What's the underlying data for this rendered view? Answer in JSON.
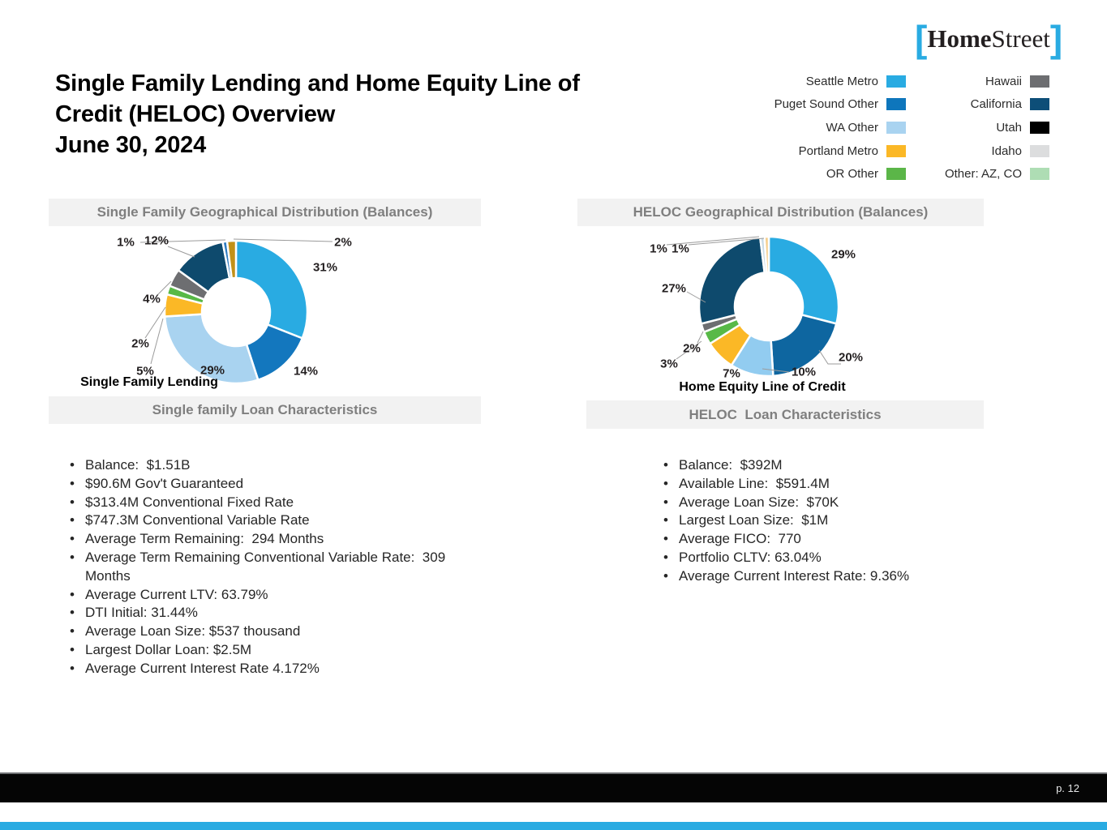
{
  "slide": {
    "title_lines": [
      "Single Family Lending and Home Equity Line of",
      "Credit (HELOC) Overview",
      "June 30, 2024"
    ]
  },
  "logo": {
    "bracket_left": "[",
    "text_bold": "Home",
    "text_regular": "Street",
    "bracket_right": "]",
    "accent_color": "#29ABE2"
  },
  "legend": {
    "columns": [
      [
        {
          "label": "Seattle Metro",
          "color": "#29ABE2"
        },
        {
          "label": "Puget Sound Other",
          "color": "#0E76BC"
        },
        {
          "label": "WA Other",
          "color": "#A9D3F0"
        },
        {
          "label": "Portland Metro",
          "color": "#FBB826"
        },
        {
          "label": "OR Other",
          "color": "#5BB648"
        }
      ],
      [
        {
          "label": "Hawaii",
          "color": "#6D6E71"
        },
        {
          "label": "California",
          "color": "#0D4E78"
        },
        {
          "label": "Utah",
          "color": "#000000"
        },
        {
          "label": "Idaho",
          "color": "#DCDDDE"
        },
        {
          "label": "Other: AZ, CO",
          "color": "#AEDDB4"
        }
      ]
    ]
  },
  "chart_data": [
    {
      "type": "pie",
      "subtype": "donut",
      "title": "Single Family Geographical Distribution (Balances)",
      "caption": "Single Family Lending",
      "legend_position": "top-right shared",
      "categories": [
        "Seattle Metro",
        "Puget Sound Other",
        "WA Other",
        "Portland Metro",
        "OR Other",
        "Hawaii",
        "California",
        "Utah",
        "Other: AZ, CO"
      ],
      "values": [
        31,
        14,
        29,
        5,
        2,
        4,
        12,
        1,
        2
      ],
      "colors": [
        "#29ABE2",
        "#1377BE",
        "#A9D3F0",
        "#FBB826",
        "#58B947",
        "#6D6E71",
        "#0E4A6D",
        "#2F7CC0",
        "#C29118"
      ]
    },
    {
      "type": "pie",
      "subtype": "donut",
      "title": "HELOC Geographical Distribution (Balances)",
      "caption": "Home Equity Line of Credit",
      "legend_position": "top-right shared",
      "categories": [
        "Seattle Metro",
        "Puget Sound Other",
        "WA Other",
        "Portland Metro",
        "OR Other",
        "Hawaii",
        "California",
        "Idaho",
        "Other: AZ, CO"
      ],
      "values": [
        29,
        20,
        10,
        7,
        3,
        2,
        27,
        1,
        1
      ],
      "colors": [
        "#29ABE2",
        "#0E66A0",
        "#92CCF0",
        "#FBB826",
        "#58B947",
        "#6D6E71",
        "#0E4A6D",
        "#C9DBE6",
        "#F5CE8C"
      ]
    }
  ],
  "loan_sections": [
    {
      "title": "Single family Loan Characteristics",
      "bullets": [
        "Balance:  $1.51B",
        "$90.6M Gov't Guaranteed",
        "$313.4M Conventional Fixed Rate",
        "$747.3M Conventional Variable Rate",
        "Average Term Remaining:  294 Months",
        "Average Term Remaining Conventional Variable Rate:  309 Months",
        "Average Current LTV: 63.79%",
        "DTI Initial: 31.44%",
        "Average Loan Size: $537 thousand",
        "Largest Dollar Loan: $2.5M",
        "Average Current Interest Rate 4.172%"
      ]
    },
    {
      "title": "HELOC  Loan Characteristics",
      "bullets": [
        "Balance:  $392M",
        "Available Line:  $591.4M",
        "Average Loan Size:  $70K",
        "Largest Loan Size:  $1M",
        "Average FICO:  770",
        "Portfolio CLTV: 63.04%",
        "Average Current Interest Rate: 9.36%"
      ]
    }
  ],
  "footer": {
    "page_label": "p. 12"
  }
}
